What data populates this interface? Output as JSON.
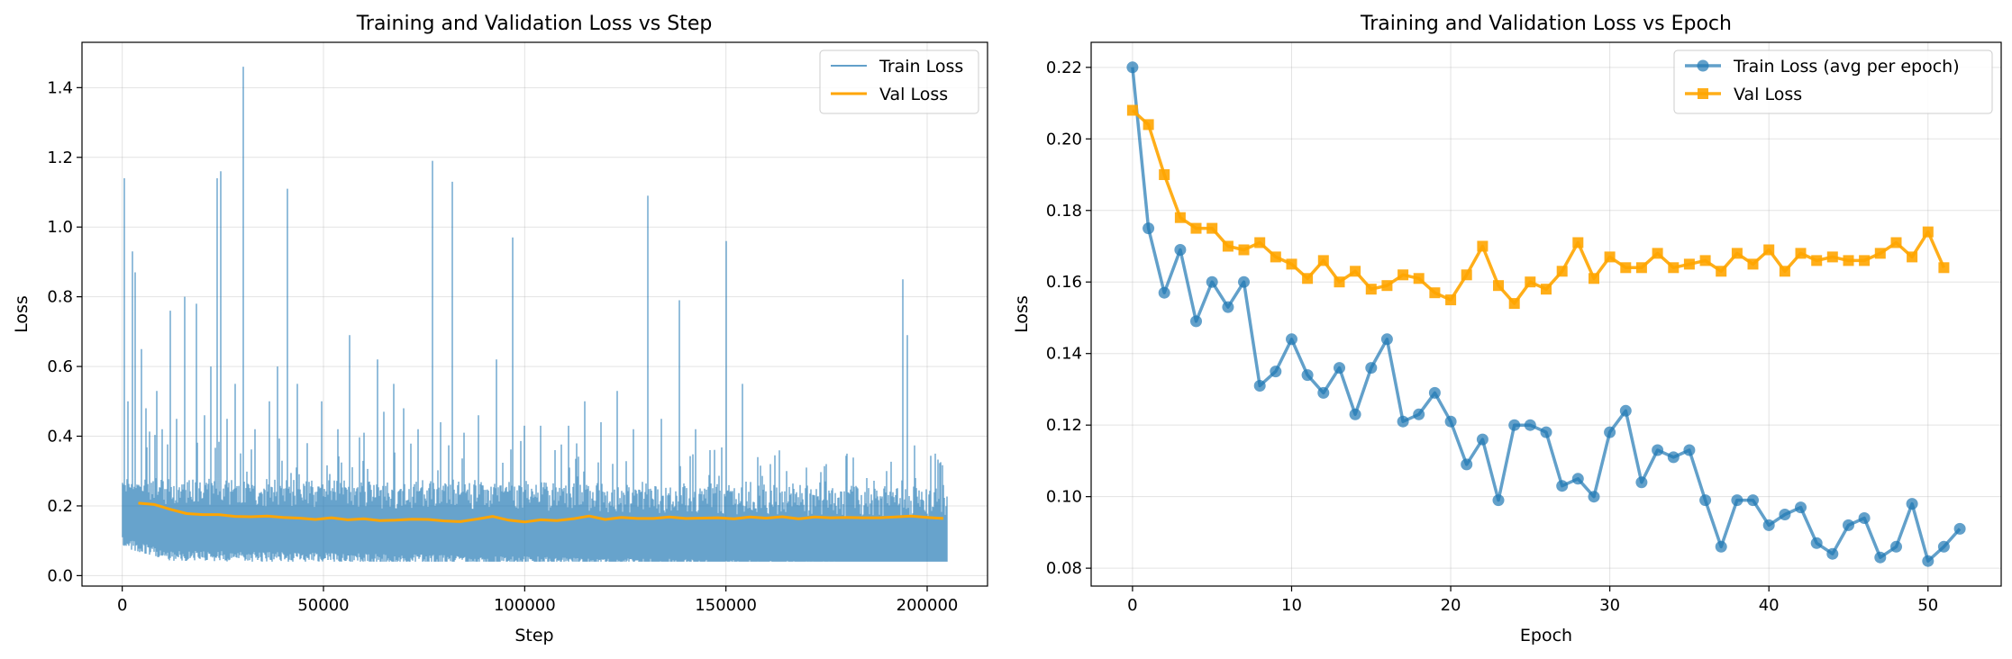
{
  "chart_data": [
    {
      "type": "line",
      "title": "Training and Validation Loss vs Step",
      "xlabel": "Step",
      "ylabel": "Loss",
      "xlim": [
        -10000,
        215000
      ],
      "ylim": [
        -0.03,
        1.53
      ],
      "xticks": [
        0,
        50000,
        100000,
        150000,
        200000
      ],
      "yticks": [
        0.0,
        0.2,
        0.4,
        0.6,
        0.8,
        1.0,
        1.2,
        1.4
      ],
      "xtick_labels": [
        "0",
        "50000",
        "100000",
        "150000",
        "200000"
      ],
      "ytick_labels": [
        "0.0",
        "0.2",
        "0.4",
        "0.6",
        "0.8",
        "1.0",
        "1.2",
        "1.4"
      ],
      "grid": true,
      "legend_position": "top-right",
      "series": [
        {
          "name": "Train Loss",
          "color": "#1f77b4",
          "style": "noisy_band",
          "x_range": [
            0,
            205000
          ],
          "band_low": 0.04,
          "band_high": 0.24,
          "spikes": [
            {
              "x": 500,
              "y": 1.14
            },
            {
              "x": 1500,
              "y": 0.5
            },
            {
              "x": 2500,
              "y": 0.93
            },
            {
              "x": 3200,
              "y": 0.87
            },
            {
              "x": 4800,
              "y": 0.65
            },
            {
              "x": 6000,
              "y": 0.48
            },
            {
              "x": 8500,
              "y": 0.53
            },
            {
              "x": 10000,
              "y": 0.42
            },
            {
              "x": 12000,
              "y": 0.76
            },
            {
              "x": 13500,
              "y": 0.45
            },
            {
              "x": 15500,
              "y": 0.8
            },
            {
              "x": 18500,
              "y": 0.78
            },
            {
              "x": 20500,
              "y": 0.46
            },
            {
              "x": 22000,
              "y": 0.6
            },
            {
              "x": 23500,
              "y": 1.14
            },
            {
              "x": 24500,
              "y": 1.16
            },
            {
              "x": 26000,
              "y": 0.45
            },
            {
              "x": 28000,
              "y": 0.55
            },
            {
              "x": 30000,
              "y": 1.46
            },
            {
              "x": 33000,
              "y": 0.42
            },
            {
              "x": 36500,
              "y": 0.5
            },
            {
              "x": 38500,
              "y": 0.6
            },
            {
              "x": 41000,
              "y": 1.11
            },
            {
              "x": 43500,
              "y": 0.55
            },
            {
              "x": 46000,
              "y": 0.38
            },
            {
              "x": 49500,
              "y": 0.5
            },
            {
              "x": 53500,
              "y": 0.42
            },
            {
              "x": 56500,
              "y": 0.69
            },
            {
              "x": 60000,
              "y": 0.41
            },
            {
              "x": 63500,
              "y": 0.62
            },
            {
              "x": 65000,
              "y": 0.47
            },
            {
              "x": 67500,
              "y": 0.55
            },
            {
              "x": 70000,
              "y": 0.48
            },
            {
              "x": 73500,
              "y": 0.42
            },
            {
              "x": 77000,
              "y": 1.19
            },
            {
              "x": 79000,
              "y": 0.44
            },
            {
              "x": 82000,
              "y": 1.13
            },
            {
              "x": 85000,
              "y": 0.41
            },
            {
              "x": 88500,
              "y": 0.46
            },
            {
              "x": 93000,
              "y": 0.62
            },
            {
              "x": 97000,
              "y": 0.97
            },
            {
              "x": 100000,
              "y": 0.43
            },
            {
              "x": 104000,
              "y": 0.43
            },
            {
              "x": 107500,
              "y": 0.36
            },
            {
              "x": 111000,
              "y": 0.43
            },
            {
              "x": 115000,
              "y": 0.5
            },
            {
              "x": 119000,
              "y": 0.44
            },
            {
              "x": 123000,
              "y": 0.53
            },
            {
              "x": 127000,
              "y": 0.42
            },
            {
              "x": 130500,
              "y": 1.09
            },
            {
              "x": 134000,
              "y": 0.45
            },
            {
              "x": 138500,
              "y": 0.79
            },
            {
              "x": 142500,
              "y": 0.42
            },
            {
              "x": 146000,
              "y": 0.36
            },
            {
              "x": 150000,
              "y": 0.96
            },
            {
              "x": 154000,
              "y": 0.55
            },
            {
              "x": 158000,
              "y": 0.34
            },
            {
              "x": 161000,
              "y": 0.32
            },
            {
              "x": 165000,
              "y": 0.3
            },
            {
              "x": 170000,
              "y": 0.31
            },
            {
              "x": 175000,
              "y": 0.32
            },
            {
              "x": 180000,
              "y": 0.35
            },
            {
              "x": 185000,
              "y": 0.28
            },
            {
              "x": 190000,
              "y": 0.3
            },
            {
              "x": 194000,
              "y": 0.85
            },
            {
              "x": 195000,
              "y": 0.69
            },
            {
              "x": 197000,
              "y": 0.28
            },
            {
              "x": 202000,
              "y": 0.35
            },
            {
              "x": 204000,
              "y": 0.26
            }
          ]
        },
        {
          "name": "Val Loss",
          "color": "#ffa500",
          "style": "line",
          "x": [
            4000,
            8000,
            12000,
            16000,
            20000,
            24000,
            28000,
            32000,
            36000,
            40000,
            44000,
            48000,
            52000,
            56000,
            60000,
            64000,
            68000,
            72000,
            76000,
            80000,
            84000,
            88000,
            92000,
            96000,
            100000,
            104000,
            108000,
            112000,
            116000,
            120000,
            124000,
            128000,
            132000,
            136000,
            140000,
            144000,
            148000,
            152000,
            156000,
            160000,
            164000,
            168000,
            172000,
            176000,
            180000,
            184000,
            188000,
            192000,
            196000,
            200000,
            204000
          ],
          "y": [
            0.208,
            0.204,
            0.19,
            0.178,
            0.175,
            0.175,
            0.17,
            0.169,
            0.171,
            0.167,
            0.165,
            0.161,
            0.166,
            0.16,
            0.163,
            0.158,
            0.159,
            0.162,
            0.161,
            0.157,
            0.155,
            0.162,
            0.17,
            0.159,
            0.154,
            0.16,
            0.158,
            0.163,
            0.171,
            0.161,
            0.167,
            0.164,
            0.164,
            0.168,
            0.164,
            0.165,
            0.166,
            0.163,
            0.168,
            0.165,
            0.169,
            0.163,
            0.168,
            0.166,
            0.167,
            0.166,
            0.166,
            0.168,
            0.171,
            0.167,
            0.164
          ]
        }
      ]
    },
    {
      "type": "line",
      "title": "Training and Validation Loss vs Epoch",
      "xlabel": "Epoch",
      "ylabel": "Loss",
      "xlim": [
        -2.6,
        54.6
      ],
      "ylim": [
        0.075,
        0.227
      ],
      "xticks": [
        0,
        10,
        20,
        30,
        40,
        50
      ],
      "yticks": [
        0.08,
        0.1,
        0.12,
        0.14,
        0.16,
        0.18,
        0.2,
        0.22
      ],
      "xtick_labels": [
        "0",
        "10",
        "20",
        "30",
        "40",
        "50"
      ],
      "ytick_labels": [
        "0.08",
        "0.10",
        "0.12",
        "0.14",
        "0.16",
        "0.18",
        "0.20",
        "0.22"
      ],
      "grid": true,
      "legend_position": "top-right",
      "series": [
        {
          "name": "Train Loss (avg per epoch)",
          "color": "#1f77b4",
          "marker": "circle",
          "x": [
            0,
            1,
            2,
            3,
            4,
            5,
            6,
            7,
            8,
            9,
            10,
            11,
            12,
            13,
            14,
            15,
            16,
            17,
            18,
            19,
            20,
            21,
            22,
            23,
            24,
            25,
            26,
            27,
            28,
            29,
            30,
            31,
            32,
            33,
            34,
            35,
            36,
            37,
            38,
            39,
            40,
            41,
            42,
            43,
            44,
            45,
            46,
            47,
            48,
            49,
            50,
            51,
            52
          ],
          "y": [
            0.22,
            0.175,
            0.157,
            0.169,
            0.149,
            0.16,
            0.153,
            0.16,
            0.131,
            0.135,
            0.144,
            0.134,
            0.129,
            0.136,
            0.123,
            0.136,
            0.144,
            0.121,
            0.123,
            0.129,
            0.121,
            0.109,
            0.116,
            0.099,
            0.12,
            0.12,
            0.118,
            0.103,
            0.105,
            0.1,
            0.118,
            0.124,
            0.104,
            0.113,
            0.111,
            0.113,
            0.099,
            0.086,
            0.099,
            0.099,
            0.092,
            0.095,
            0.097,
            0.087,
            0.084,
            0.092,
            0.094,
            0.083,
            0.086,
            0.098,
            0.082,
            0.086,
            0.091
          ]
        },
        {
          "name": "Val Loss",
          "color": "#ffa500",
          "marker": "square",
          "x": [
            0,
            1,
            2,
            3,
            4,
            5,
            6,
            7,
            8,
            9,
            10,
            11,
            12,
            13,
            14,
            15,
            16,
            17,
            18,
            19,
            20,
            21,
            22,
            23,
            24,
            25,
            26,
            27,
            28,
            29,
            30,
            31,
            32,
            33,
            34,
            35,
            36,
            37,
            38,
            39,
            40,
            41,
            42,
            43,
            44,
            45,
            46,
            47,
            48,
            49,
            50,
            51
          ],
          "y": [
            0.208,
            0.204,
            0.19,
            0.178,
            0.175,
            0.175,
            0.17,
            0.169,
            0.171,
            0.167,
            0.165,
            0.161,
            0.166,
            0.16,
            0.163,
            0.158,
            0.159,
            0.162,
            0.161,
            0.157,
            0.155,
            0.162,
            0.17,
            0.159,
            0.154,
            0.16,
            0.158,
            0.163,
            0.171,
            0.161,
            0.167,
            0.164,
            0.164,
            0.168,
            0.164,
            0.165,
            0.166,
            0.163,
            0.168,
            0.165,
            0.169,
            0.163,
            0.168,
            0.166,
            0.167,
            0.166,
            0.166,
            0.168,
            0.171,
            0.167,
            0.174,
            0.164
          ]
        }
      ]
    }
  ]
}
